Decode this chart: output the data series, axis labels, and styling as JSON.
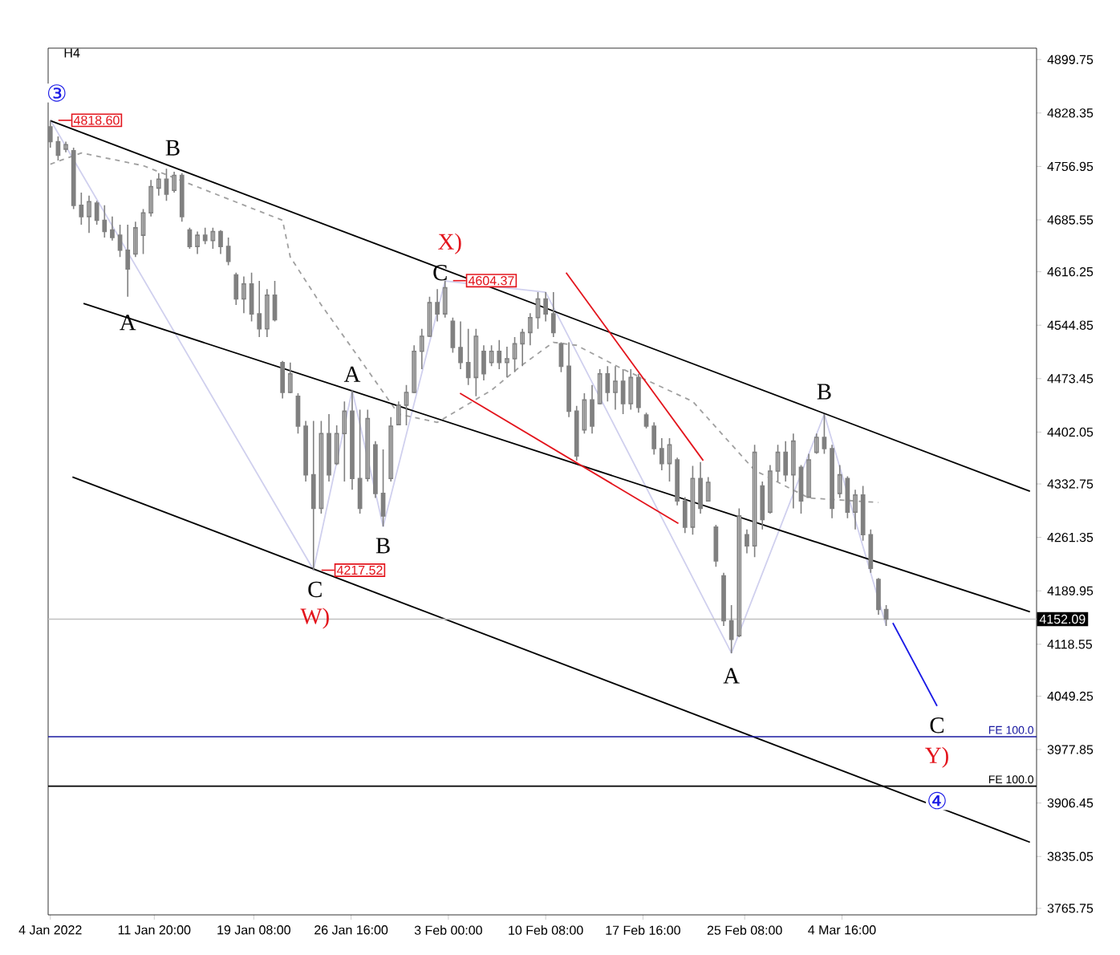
{
  "chart_data": {
    "type": "candlestick",
    "title": "H4",
    "color": "#808080",
    "x": [
      "2022-01-04T00:00",
      "2022-01-04T14:00",
      "2022-01-05T04:00",
      "2022-01-05T18:00",
      "2022-01-06T08:00",
      "2022-01-06T22:00",
      "2022-01-07T12:00",
      "2022-01-08T02:00",
      "2022-01-08T16:00",
      "2022-01-09T06:00",
      "2022-01-09T20:00",
      "2022-01-10T10:00",
      "2022-01-11T00:00",
      "2022-01-11T14:00",
      "2022-01-12T04:00",
      "2022-01-12T18:00",
      "2022-01-13T08:00",
      "2022-01-13T22:00",
      "2022-01-14T12:00",
      "2022-01-15T02:00",
      "2022-01-15T16:00",
      "2022-01-16T06:00",
      "2022-01-16T20:00",
      "2022-01-17T10:00",
      "2022-01-18T00:00",
      "2022-01-18T14:00",
      "2022-01-19T04:00",
      "2022-01-19T18:00",
      "2022-01-20T08:00",
      "2022-01-20T22:00",
      "2022-01-21T12:00",
      "2022-01-22T02:00",
      "2022-01-22T16:00",
      "2022-01-23T06:00",
      "2022-01-23T20:00",
      "2022-01-24T10:00",
      "2022-01-25T00:00",
      "2022-01-25T14:00",
      "2022-01-26T04:00",
      "2022-01-26T18:00",
      "2022-01-27T08:00",
      "2022-01-27T22:00",
      "2022-01-28T12:00",
      "2022-01-29T02:00",
      "2022-01-29T16:00",
      "2022-01-30T06:00",
      "2022-01-30T20:00",
      "2022-01-31T10:00",
      "2022-02-01T00:00",
      "2022-02-01T14:00",
      "2022-02-02T04:00",
      "2022-02-02T18:00",
      "2022-02-03T08:00",
      "2022-02-03T22:00",
      "2022-02-04T12:00",
      "2022-02-05T02:00",
      "2022-02-05T16:00",
      "2022-02-06T06:00",
      "2022-02-06T20:00",
      "2022-02-07T10:00",
      "2022-02-08T00:00",
      "2022-02-08T14:00",
      "2022-02-09T04:00",
      "2022-02-09T18:00",
      "2022-02-10T08:00",
      "2022-02-10T22:00",
      "2022-02-11T12:00",
      "2022-02-12T02:00",
      "2022-02-12T16:00",
      "2022-02-13T06:00",
      "2022-02-13T20:00",
      "2022-02-14T10:00",
      "2022-02-15T00:00",
      "2022-02-15T14:00",
      "2022-02-16T04:00",
      "2022-02-16T18:00",
      "2022-02-17T08:00",
      "2022-02-17T22:00",
      "2022-02-18T12:00",
      "2022-02-19T02:00",
      "2022-02-19T16:00",
      "2022-02-20T06:00",
      "2022-02-20T20:00",
      "2022-02-21T10:00",
      "2022-02-22T00:00",
      "2022-02-22T14:00",
      "2022-02-23T04:00",
      "2022-02-23T18:00",
      "2022-02-24T08:00",
      "2022-02-24T22:00",
      "2022-02-25T12:00",
      "2022-02-26T02:00",
      "2022-02-26T16:00",
      "2022-02-27T06:00",
      "2022-02-27T20:00",
      "2022-02-28T10:00",
      "2022-03-01T00:00",
      "2022-03-01T14:00",
      "2022-03-02T04:00",
      "2022-03-02T18:00",
      "2022-03-03T08:00",
      "2022-03-03T22:00",
      "2022-03-04T12:00",
      "2022-03-05T02:00",
      "2022-03-05T16:00",
      "2022-03-06T06:00",
      "2022-03-06T20:00",
      "2022-03-07T10:00",
      "2022-03-08T00:00"
    ],
    "ohlc": [
      [
        4810,
        4818.6,
        4782,
        4790
      ],
      [
        4790,
        4797,
        4765,
        4772
      ],
      [
        4780,
        4790,
        4776,
        4786
      ],
      [
        4778,
        4782,
        4700,
        4705
      ],
      [
        4705,
        4722,
        4679,
        4690
      ],
      [
        4690,
        4718,
        4668,
        4710
      ],
      [
        4708,
        4711,
        4679,
        4685
      ],
      [
        4685,
        4705,
        4662,
        4670
      ],
      [
        4672,
        4690,
        4658,
        4662
      ],
      [
        4665,
        4679,
        4636,
        4645
      ],
      [
        4645,
        4679,
        4583,
        4620
      ],
      [
        4640,
        4683,
        4636,
        4675
      ],
      [
        4665,
        4700,
        4640,
        4695
      ],
      [
        4695,
        4739,
        4690,
        4730
      ],
      [
        4728,
        4748,
        4718,
        4740
      ],
      [
        4740,
        4754,
        4711,
        4720
      ],
      [
        4725,
        4750,
        4722,
        4745
      ],
      [
        4745,
        4748,
        4683,
        4690
      ],
      [
        4672,
        4675,
        4647,
        4650
      ],
      [
        4650,
        4670,
        4640,
        4665
      ],
      [
        4665,
        4675,
        4653,
        4658
      ],
      [
        4658,
        4675,
        4647,
        4670
      ],
      [
        4670,
        4672,
        4640,
        4650
      ],
      [
        4650,
        4662,
        4625,
        4630
      ],
      [
        4612,
        4615,
        4572,
        4580
      ],
      [
        4580,
        4610,
        4561,
        4600
      ],
      [
        4600,
        4615,
        4550,
        4560
      ],
      [
        4560,
        4604,
        4529,
        4540
      ],
      [
        4540,
        4593,
        4529,
        4585
      ],
      [
        4585,
        4604,
        4550,
        4552
      ],
      [
        4495,
        4497,
        4447,
        4455
      ],
      [
        4455,
        4495,
        4454,
        4480
      ],
      [
        4450,
        4454,
        4400,
        4410
      ],
      [
        4410,
        4417,
        4336,
        4345
      ],
      [
        4345,
        4417,
        4217.52,
        4300
      ],
      [
        4300,
        4417,
        4293,
        4400
      ],
      [
        4400,
        4426,
        4336,
        4345
      ],
      [
        4360,
        4411,
        4358,
        4400
      ],
      [
        4400,
        4443,
        4336,
        4430
      ],
      [
        4430,
        4458,
        4325,
        4340
      ],
      [
        4340,
        4432,
        4293,
        4300
      ],
      [
        4340,
        4432,
        4336,
        4420
      ],
      [
        4385,
        4390,
        4314,
        4320
      ],
      [
        4320,
        4379,
        4276,
        4290
      ],
      [
        4340,
        4422,
        4336,
        4410
      ],
      [
        4412,
        4443,
        4411,
        4438
      ],
      [
        4438,
        4465,
        4411,
        4455
      ],
      [
        4455,
        4518,
        4454,
        4510
      ],
      [
        4510,
        4540,
        4486,
        4530
      ],
      [
        4530,
        4583,
        4529,
        4575
      ],
      [
        4575,
        4593,
        4550,
        4560
      ],
      [
        4560,
        4604.37,
        4555,
        4595
      ],
      [
        4550,
        4555,
        4508,
        4515
      ],
      [
        4515,
        4550,
        4486,
        4495
      ],
      [
        4495,
        4540,
        4465,
        4475
      ],
      [
        4475,
        4540,
        4450,
        4530
      ],
      [
        4510,
        4518,
        4471,
        4480
      ],
      [
        4495,
        4518,
        4490,
        4510
      ],
      [
        4510,
        4525,
        4486,
        4495
      ],
      [
        4495,
        4516,
        4475,
        4500
      ],
      [
        4500,
        4529,
        4482,
        4520
      ],
      [
        4520,
        4540,
        4490,
        4535
      ],
      [
        4535,
        4561,
        4518,
        4555
      ],
      [
        4555,
        4589,
        4540,
        4580
      ],
      [
        4580,
        4589,
        4550,
        4560
      ],
      [
        4560,
        4589,
        4529,
        4535
      ],
      [
        4520,
        4522,
        4482,
        4490
      ],
      [
        4490,
        4522,
        4422,
        4430
      ],
      [
        4430,
        4437,
        4364,
        4370
      ],
      [
        4405,
        4454,
        4400,
        4445
      ],
      [
        4445,
        4465,
        4400,
        4410
      ],
      [
        4440,
        4486,
        4439,
        4480
      ],
      [
        4480,
        4490,
        4443,
        4455
      ],
      [
        4455,
        4490,
        4432,
        4470
      ],
      [
        4470,
        4486,
        4426,
        4440
      ],
      [
        4440,
        4486,
        4432,
        4475
      ],
      [
        4475,
        4480,
        4428,
        4435
      ],
      [
        4425,
        4428,
        4407,
        4410
      ],
      [
        4410,
        4415,
        4372,
        4380
      ],
      [
        4380,
        4394,
        4351,
        4360
      ],
      [
        4360,
        4394,
        4336,
        4385
      ],
      [
        4365,
        4368,
        4304,
        4310
      ],
      [
        4310,
        4315,
        4267,
        4275
      ],
      [
        4275,
        4357,
        4265,
        4340
      ],
      [
        4340,
        4362,
        4293,
        4300
      ],
      [
        4310,
        4342,
        4310,
        4335
      ],
      [
        4275,
        4278,
        4222,
        4230
      ],
      [
        4210,
        4214,
        4143,
        4150
      ],
      [
        4150,
        4171,
        4106.6,
        4125
      ],
      [
        4130,
        4300,
        4128,
        4290
      ],
      [
        4265,
        4272,
        4240,
        4250
      ],
      [
        4250,
        4385,
        4235,
        4375
      ],
      [
        4330,
        4336,
        4272,
        4285
      ],
      [
        4295,
        4358,
        4293,
        4350
      ],
      [
        4350,
        4385,
        4336,
        4375
      ],
      [
        4375,
        4390,
        4336,
        4345
      ],
      [
        4345,
        4400,
        4300,
        4390
      ],
      [
        4355,
        4358,
        4293,
        4310
      ],
      [
        4315,
        4373,
        4314,
        4365
      ],
      [
        4375,
        4400,
        4373,
        4395
      ],
      [
        4395,
        4426,
        4373,
        4380
      ],
      [
        4380,
        4385,
        4287,
        4300
      ],
      [
        4320,
        4358,
        4314,
        4345
      ],
      [
        4340,
        4343,
        4287,
        4295
      ],
      [
        4295,
        4325,
        4272,
        4318
      ],
      [
        4318,
        4330,
        4257,
        4265
      ],
      [
        4265,
        4272,
        4214,
        4220
      ],
      [
        4205,
        4207,
        4158,
        4165
      ],
      [
        4165,
        4171,
        4143,
        4152.09
      ]
    ],
    "series": [
      {
        "type": "line",
        "color": "#d0d0ee",
        "line_style": "solid",
        "x": [
          "2022-01-04T00:00",
          "2022-01-23T20:00",
          "2022-01-26T18:00",
          "2022-01-29T02:00",
          "2022-02-02T18:00",
          "2022-02-10T08:00",
          "2022-02-24T08:00",
          "2022-03-03T08:00",
          "2022-03-08T00:00"
        ],
        "values": [
          4819,
          4218,
          4458,
          4276,
          4604,
          4589,
          4107,
          4426,
          4143
        ]
      },
      {
        "type": "line",
        "color": "#a0a0a0",
        "line_style": "dashed",
        "x": [
          "2022-01-04T00:00",
          "2022-01-06T08:00",
          "2022-01-11T00:00",
          "2022-01-21T12:00",
          "2022-01-22T02:00",
          "2022-01-24T10:00",
          "2022-01-26T18:00",
          "2022-01-30T06:00",
          "2022-02-02T04:00",
          "2022-02-06T06:00",
          "2022-02-08T14:00",
          "2022-02-10T22:00",
          "2022-02-12T16:00",
          "2022-02-16T04:00",
          "2022-02-21T10:00",
          "2022-02-26T02:00",
          "2022-03-02T04:00",
          "2022-03-07T10:00"
        ],
        "values": [
          4760,
          4775,
          4758,
          4685,
          4636,
          4572,
          4514,
          4426,
          4415,
          4458,
          4492,
          4522,
          4518,
          4486,
          4443,
          4351,
          4314,
          4308
        ]
      },
      {
        "type": "line",
        "color": "#000000",
        "line_style": "solid",
        "x": [
          "2022-01-04T00:00",
          "2022-03-18T20:00"
        ],
        "values": [
          4818,
          4323
        ]
      },
      {
        "type": "line",
        "color": "#000000",
        "line_style": "solid",
        "x": [
          "2022-01-06T12:00",
          "2022-03-18T20:00"
        ],
        "values": [
          4574,
          4162
        ]
      },
      {
        "type": "line",
        "color": "#000000",
        "line_style": "solid",
        "x": [
          "2022-01-05T16:00",
          "2022-03-18T20:00"
        ],
        "values": [
          4342,
          3854
        ]
      },
      {
        "type": "line",
        "color": "#e3141c",
        "line_style": "solid",
        "x": [
          "2022-02-03T21:00",
          "2022-02-20T08:00"
        ],
        "values": [
          4454,
          4280
        ]
      },
      {
        "type": "line",
        "color": "#e3141c",
        "line_style": "solid",
        "x": [
          "2022-02-11T21:00",
          "2022-02-22T05:00"
        ],
        "values": [
          4615,
          4364
        ]
      },
      {
        "type": "line",
        "color": "#1a1ae6",
        "line_style": "solid",
        "x": [
          "2022-03-08T12:00",
          "2022-03-11T20:00"
        ],
        "values": [
          4147,
          4036
        ]
      }
    ],
    "xlim": [
      "2022-01-03T20:00",
      "2022-03-19T08:00"
    ],
    "ylim": [
      3757,
      4915
    ],
    "xticks": [
      {
        "value": "2022-01-04T00:00",
        "label": "4 Jan 2022"
      },
      {
        "value": "2022-01-11T20:00",
        "label": "11 Jan 20:00"
      },
      {
        "value": "2022-01-19T08:00",
        "label": "19 Jan 08:00"
      },
      {
        "value": "2022-01-26T16:00",
        "label": "26 Jan 16:00"
      },
      {
        "value": "2022-02-03T00:00",
        "label": "3 Feb 00:00"
      },
      {
        "value": "2022-02-10T08:00",
        "label": "10 Feb 08:00"
      },
      {
        "value": "2022-02-17T16:00",
        "label": "17 Feb 16:00"
      },
      {
        "value": "2022-02-25T08:00",
        "label": "25 Feb 08:00"
      },
      {
        "value": "2022-03-04T16:00",
        "label": "4 Mar 16:00"
      }
    ],
    "yticks": [
      3765.75,
      3835.05,
      3906.45,
      3977.85,
      4049.25,
      4118.55,
      4189.95,
      4261.35,
      4332.75,
      4402.05,
      4473.45,
      4544.85,
      4616.25,
      4685.55,
      4756.95,
      4828.35,
      4899.75
    ],
    "ref_lines": [
      {
        "axis": "y",
        "value": 4152.09,
        "label": "4152.09",
        "color": "#c0c0c0"
      },
      {
        "axis": "y",
        "value": 3995,
        "label": "FE 100.0",
        "color": "#1a1aa0"
      },
      {
        "axis": "y",
        "value": 3929,
        "label": "FE 100.0",
        "color": "#000000"
      }
    ],
    "annotations": [
      {
        "text": "③",
        "x": "2022-01-04T00:00",
        "y": 4818.6
      },
      {
        "text": "4818.60",
        "x": "2022-01-04T00:00",
        "y": 4818.6
      },
      {
        "text": "B",
        "x": "2022-01-12T18:00",
        "y": 4754
      },
      {
        "text": "A",
        "x": "2022-01-09T20:00",
        "y": 4583
      },
      {
        "text": "C",
        "x": "2022-01-23T20:00",
        "y": 4217.52
      },
      {
        "text": "W)",
        "x": "2022-01-23T20:00",
        "y": 4217.52
      },
      {
        "text": "4217.52",
        "x": "2022-01-23T20:00",
        "y": 4217.52
      },
      {
        "text": "A",
        "x": "2022-01-26T18:00",
        "y": 4458
      },
      {
        "text": "B",
        "x": "2022-01-29T02:00",
        "y": 4276
      },
      {
        "text": "X)",
        "x": "2022-02-02T18:00",
        "y": 4604.37
      },
      {
        "text": "C",
        "x": "2022-02-02T18:00",
        "y": 4604.37
      },
      {
        "text": "4604.37",
        "x": "2022-02-02T18:00",
        "y": 4604.37
      },
      {
        "text": "A",
        "x": "2022-02-24T08:00",
        "y": 4106.6
      },
      {
        "text": "B",
        "x": "2022-03-03T08:00",
        "y": 4426
      },
      {
        "text": "C",
        "x": "2022-03-11T20:00",
        "y": 4036
      },
      {
        "text": "Y)",
        "x": "2022-03-11T20:00",
        "y": 4036
      },
      {
        "text": "④",
        "x": "2022-03-11T20:00",
        "y": 3929
      }
    ],
    "grid": false
  }
}
